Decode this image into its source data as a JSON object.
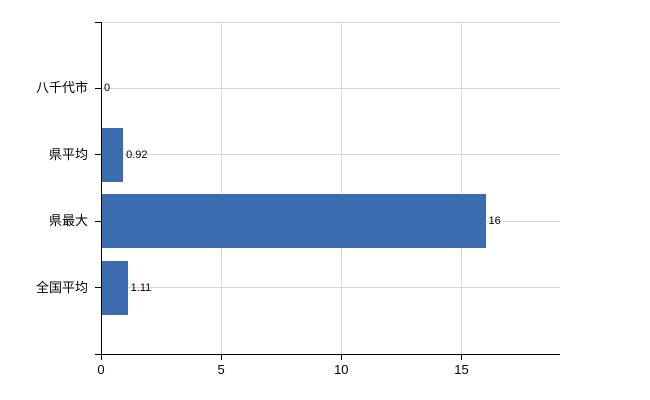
{
  "chart_data": {
    "type": "bar",
    "orientation": "horizontal",
    "title": "",
    "xlabel": "",
    "ylabel": "",
    "categories": [
      "八千代市",
      "県平均",
      "県最大",
      "全国平均"
    ],
    "values": [
      0,
      0.92,
      16,
      1.11
    ],
    "value_labels": [
      "0",
      "0.92",
      "16",
      "1.11"
    ],
    "x_ticks": [
      0,
      5,
      10,
      15
    ],
    "x_tick_labels": [
      "0",
      "5",
      "10",
      "15"
    ],
    "xlim": [
      0,
      19.1
    ],
    "grid": true,
    "legend": false,
    "colors": {
      "bar": "#3c6cb0",
      "grid": "#d9d9d9",
      "axis": "#000000",
      "text": "#000000"
    }
  }
}
